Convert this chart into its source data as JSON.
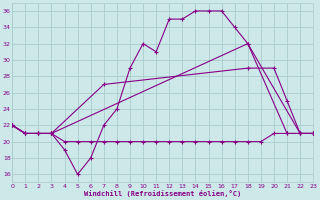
{
  "xlabel": "Windchill (Refroidissement éolien,°C)",
  "bg_color": "#cce8e8",
  "grid_color": "#aacccc",
  "line_color": "#880088",
  "xlim": [
    0,
    23
  ],
  "ylim": [
    15,
    37
  ],
  "yticks": [
    16,
    18,
    20,
    22,
    24,
    26,
    28,
    30,
    32,
    34,
    36
  ],
  "xticks": [
    0,
    1,
    2,
    3,
    4,
    5,
    6,
    7,
    8,
    9,
    10,
    11,
    12,
    13,
    14,
    15,
    16,
    17,
    18,
    19,
    20,
    21,
    22,
    23
  ],
  "lines": [
    {
      "x": [
        0,
        1,
        2,
        3,
        4,
        5,
        6,
        7,
        8,
        9,
        10,
        11,
        12,
        13,
        14,
        15,
        16,
        17,
        18,
        21,
        22,
        23
      ],
      "y": [
        22,
        21,
        21,
        21,
        19,
        16,
        18,
        22,
        24,
        29,
        32,
        31,
        35,
        35,
        36,
        36,
        36,
        34,
        32,
        21,
        21,
        21
      ]
    },
    {
      "x": [
        0,
        1,
        2,
        3,
        7,
        18,
        20,
        21,
        22,
        23
      ],
      "y": [
        22,
        21,
        21,
        21,
        27,
        29,
        29,
        25,
        21,
        21
      ]
    },
    {
      "x": [
        0,
        1,
        2,
        3,
        18,
        22,
        23
      ],
      "y": [
        22,
        21,
        21,
        21,
        32,
        21,
        21
      ]
    },
    {
      "x": [
        0,
        1,
        2,
        3,
        4,
        5,
        6,
        7,
        8,
        9,
        10,
        11,
        12,
        13,
        14,
        15,
        16,
        17,
        18,
        19,
        20,
        21,
        22,
        23
      ],
      "y": [
        22,
        21,
        21,
        21,
        20,
        20,
        20,
        20,
        20,
        20,
        20,
        20,
        20,
        20,
        20,
        20,
        20,
        20,
        20,
        20,
        21,
        21,
        21,
        21
      ]
    }
  ]
}
